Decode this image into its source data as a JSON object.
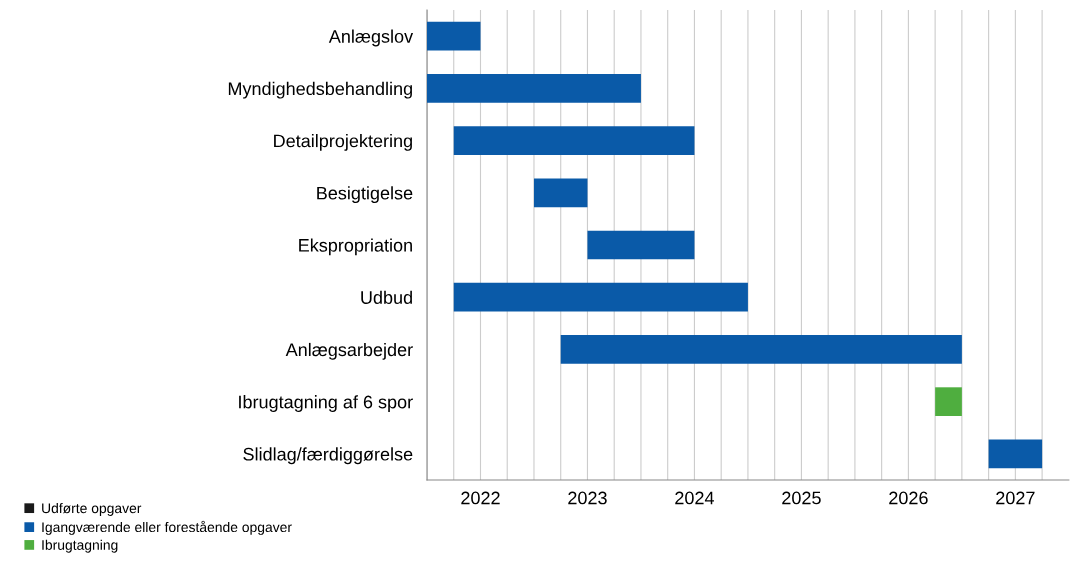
{
  "chart_data": {
    "type": "bar",
    "orientation": "horizontal",
    "categories": [
      "Anlægslov",
      "Myndighedsbehandling",
      "Detailprojektering",
      "Besigtigelse",
      "Ekspropriation",
      "Udbud",
      "Anlægsarbejder",
      "Ibrugtagning af 6 spor",
      "Slidlag/færdiggørelse"
    ],
    "series": [
      {
        "name": "Udførte opgaver",
        "color": "#1a1a1a",
        "base": [
          null,
          null,
          null,
          null,
          null,
          null,
          null,
          null,
          null
        ],
        "values": [
          null,
          null,
          null,
          null,
          null,
          null,
          null,
          null,
          null
        ]
      },
      {
        "name": "Igangværende eller forestående opgaver",
        "color": "#0a5aa8",
        "base": [
          2022,
          2022,
          2022.25,
          2023,
          2023.5,
          2022.25,
          2023.25,
          null,
          2027.25
        ],
        "values": [
          0.5,
          2,
          2.25,
          0.5,
          1,
          2.75,
          3.75,
          null,
          0.5
        ]
      },
      {
        "name": "Ibrugtagning",
        "color": "#4fae3f",
        "base": [
          null,
          null,
          null,
          null,
          null,
          null,
          null,
          2026.75,
          null
        ],
        "values": [
          null,
          null,
          null,
          null,
          null,
          null,
          null,
          0.25,
          null
        ]
      }
    ],
    "xlim": [
      2022,
      2028
    ],
    "xticks": [
      {
        "value": 2022,
        "label": null
      },
      {
        "value": 2022.25,
        "label": null
      },
      {
        "value": 2022.5,
        "label": "2022"
      },
      {
        "value": 2022.75,
        "label": null
      },
      {
        "value": 2023,
        "label": null
      },
      {
        "value": 2023.25,
        "label": null
      },
      {
        "value": 2023.5,
        "label": "2023"
      },
      {
        "value": 2023.75,
        "label": null
      },
      {
        "value": 2024,
        "label": null
      },
      {
        "value": 2024.25,
        "label": null
      },
      {
        "value": 2024.5,
        "label": "2024"
      },
      {
        "value": 2024.75,
        "label": null
      },
      {
        "value": 2025,
        "label": null
      },
      {
        "value": 2025.25,
        "label": null
      },
      {
        "value": 2025.5,
        "label": "2025"
      },
      {
        "value": 2025.75,
        "label": null
      },
      {
        "value": 2026,
        "label": null
      },
      {
        "value": 2026.25,
        "label": null
      },
      {
        "value": 2026.5,
        "label": "2026"
      },
      {
        "value": 2026.75,
        "label": null
      },
      {
        "value": 2027,
        "label": null
      },
      {
        "value": 2027.25,
        "label": null
      },
      {
        "value": 2027.5,
        "label": "2027"
      },
      {
        "value": 2027.75,
        "label": null
      }
    ],
    "grid": "x",
    "legend": "bottom left"
  }
}
